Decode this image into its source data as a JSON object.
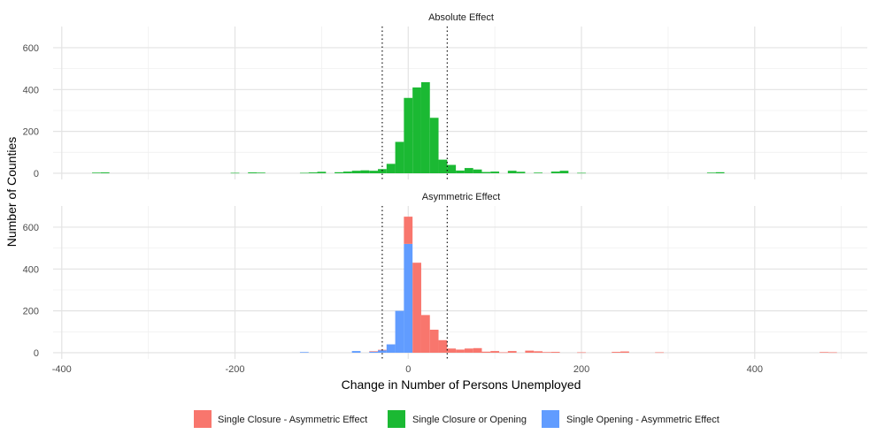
{
  "chart_data": {
    "type": "bar",
    "subtype": "faceted-histogram",
    "bin_width": 10,
    "xlabel": "Change in Number of Persons Unemployed",
    "ylabel": "Number of Counties",
    "xlim": [
      -410,
      530
    ],
    "x_ticks": [
      -400,
      -200,
      0,
      200,
      400
    ],
    "ylim": [
      0,
      680
    ],
    "y_ticks": [
      0,
      200,
      400,
      600
    ],
    "grid": true,
    "vlines": [
      -30,
      45
    ],
    "legend": {
      "position": "bottom",
      "entries": [
        {
          "label": "Single Closure - Asymmetric Effect",
          "color": "#F8766D"
        },
        {
          "label": "Single Closure or Opening",
          "color": "#1BB933"
        },
        {
          "label": "Single Opening - Asymmetric Effect",
          "color": "#619CFF"
        }
      ]
    },
    "panels": [
      {
        "title": "Absolute Effect",
        "series": [
          {
            "name": "Single Closure or Opening",
            "color": "#1BB933",
            "bins": [
              [
                -360,
                3
              ],
              [
                -350,
                4
              ],
              [
                -200,
                2
              ],
              [
                -180,
                4
              ],
              [
                -170,
                3
              ],
              [
                -120,
                2
              ],
              [
                -110,
                4
              ],
              [
                -100,
                7
              ],
              [
                -80,
                5
              ],
              [
                -70,
                8
              ],
              [
                -60,
                12
              ],
              [
                -50,
                14
              ],
              [
                -40,
                12
              ],
              [
                -30,
                20
              ],
              [
                -20,
                45
              ],
              [
                -10,
                150
              ],
              [
                0,
                360
              ],
              [
                10,
                410
              ],
              [
                20,
                435
              ],
              [
                30,
                265
              ],
              [
                40,
                65
              ],
              [
                50,
                40
              ],
              [
                60,
                13
              ],
              [
                70,
                25
              ],
              [
                80,
                18
              ],
              [
                90,
                6
              ],
              [
                100,
                8
              ],
              [
                120,
                12
              ],
              [
                130,
                7
              ],
              [
                150,
                3
              ],
              [
                170,
                8
              ],
              [
                180,
                12
              ],
              [
                200,
                2
              ],
              [
                350,
                3
              ],
              [
                360,
                5
              ]
            ]
          }
        ]
      },
      {
        "title": "Asymmetric Effect",
        "series": [
          {
            "name": "Single Opening - Asymmetric Effect",
            "color": "#619CFF",
            "bins": [
              [
                -120,
                3
              ],
              [
                -60,
                8
              ],
              [
                -40,
                5
              ],
              [
                -30,
                12
              ],
              [
                -20,
                40
              ],
              [
                -10,
                200
              ],
              [
                0,
                520
              ],
              [
                10,
                0
              ]
            ]
          },
          {
            "name": "Single Closure - Asymmetric Effect",
            "color": "#F8766D",
            "bins": [
              [
                -40,
                2
              ],
              [
                -30,
                2
              ],
              [
                0,
                130
              ],
              [
                10,
                430
              ],
              [
                20,
                180
              ],
              [
                30,
                110
              ],
              [
                40,
                60
              ],
              [
                50,
                20
              ],
              [
                60,
                15
              ],
              [
                70,
                20
              ],
              [
                80,
                22
              ],
              [
                90,
                5
              ],
              [
                100,
                8
              ],
              [
                110,
                2
              ],
              [
                120,
                8
              ],
              [
                140,
                10
              ],
              [
                150,
                7
              ],
              [
                160,
                3
              ],
              [
                170,
                4
              ],
              [
                200,
                2
              ],
              [
                240,
                4
              ],
              [
                250,
                6
              ],
              [
                290,
                2
              ],
              [
                480,
                3
              ],
              [
                490,
                2
              ]
            ]
          }
        ]
      }
    ]
  }
}
